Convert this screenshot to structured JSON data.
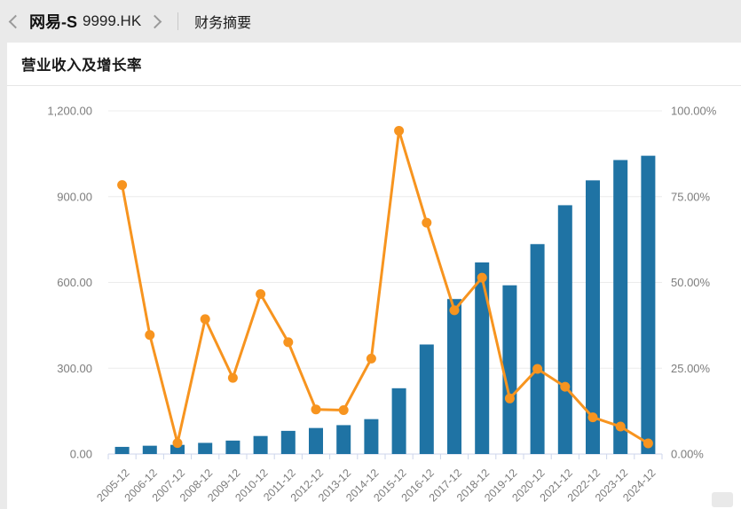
{
  "header": {
    "stock_name": "网易-S",
    "stock_code": "9999.HK",
    "tab": "财务摘要"
  },
  "card": {
    "title": "营业收入及增长率"
  },
  "chart_data": {
    "type": "bar",
    "subtype": "bar-line-combo",
    "title": "营业收入及增长率",
    "legend": "none",
    "grid": "horizontal",
    "categories": [
      "2005-12",
      "2006-12",
      "2007-12",
      "2008-12",
      "2009-12",
      "2010-12",
      "2011-12",
      "2012-12",
      "2013-12",
      "2014-12",
      "2015-12",
      "2016-12",
      "2017-12",
      "2018-12",
      "2019-12",
      "2020-12",
      "2021-12",
      "2022-12",
      "2023-12",
      "2024-12"
    ],
    "series": [
      {
        "name": "营业收入",
        "type": "bar",
        "y_axis": "left",
        "color": "#1f73a4",
        "values": [
          25,
          29,
          32,
          39,
          47,
          63,
          81,
          91,
          101,
          122,
          230,
          383,
          542,
          670,
          590,
          734,
          870,
          957,
          1028,
          1043
        ]
      },
      {
        "name": "增长率",
        "type": "line",
        "y_axis": "right",
        "color": "#f7941f",
        "values": [
          78.4,
          34.7,
          3.2,
          39.3,
          22.2,
          46.6,
          32.6,
          13.0,
          12.8,
          27.8,
          94.2,
          67.4,
          41.9,
          51.4,
          16.2,
          24.8,
          19.6,
          10.7,
          8.0,
          3.1
        ]
      }
    ],
    "left_axis": {
      "min": 0,
      "max": 1200,
      "tick_labels": [
        "0.00",
        "300.00",
        "600.00",
        "900.00",
        "1,200.00"
      ]
    },
    "right_axis": {
      "min": 0,
      "max": 100,
      "tick_labels": [
        "0.00%",
        "25.00%",
        "50.00%",
        "75.00%",
        "100.00%"
      ]
    }
  }
}
